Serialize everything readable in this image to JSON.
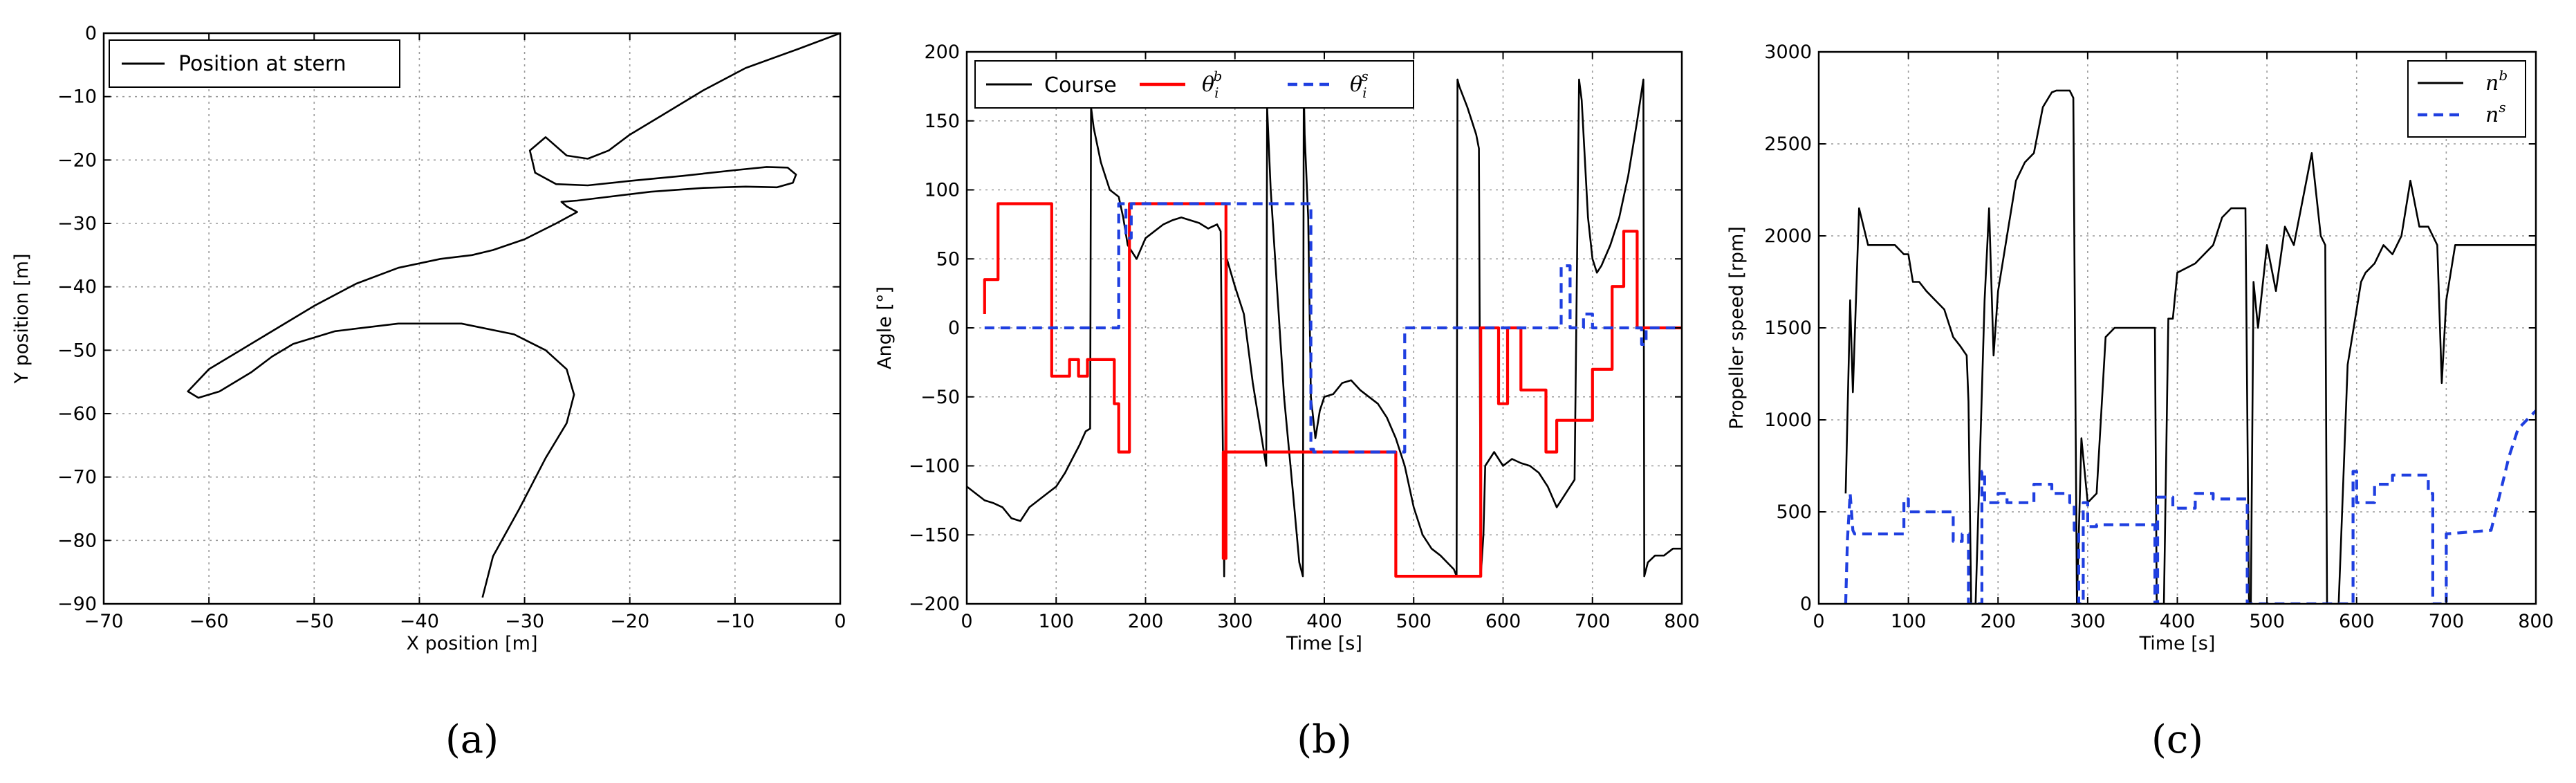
{
  "colors": {
    "black": "#000000",
    "red": "#ff0000",
    "blue": "#1f3fe0",
    "grid": "#9a9a9a"
  },
  "chart_data": [
    {
      "id": "a",
      "type": "line",
      "caption": "(a)",
      "title": "",
      "xlabel": "X position [m]",
      "ylabel": "Y position [m]",
      "xlim": [
        -70,
        0
      ],
      "ylim": [
        -90,
        0
      ],
      "xticks": [
        -70,
        -60,
        -50,
        -40,
        -30,
        -20,
        -10,
        0
      ],
      "xticklabels": [
        "−70",
        "−60",
        "−50",
        "−40",
        "−30",
        "−20",
        "−10",
        "0"
      ],
      "yticks": [
        -90,
        -80,
        -70,
        -60,
        -50,
        -40,
        -30,
        -20,
        -10,
        0
      ],
      "yticklabels": [
        "−90",
        "−80",
        "−70",
        "−60",
        "−50",
        "−40",
        "−30",
        "−20",
        "−10",
        "0"
      ],
      "grid": true,
      "legend": "top-left",
      "series": [
        {
          "name": "Position at stern",
          "color": "#000000",
          "style": "solid",
          "x": [
            0,
            -4,
            -9,
            -13,
            -17,
            -20,
            -22,
            -24,
            -26,
            -28,
            -29.5,
            -29,
            -27,
            -24,
            -20,
            -15,
            -10,
            -7,
            -5,
            -4.2,
            -4.5,
            -6,
            -9,
            -13,
            -18,
            -22,
            -25,
            -26.5,
            -26,
            -25,
            -27,
            -30,
            -33,
            -35,
            -38,
            -42,
            -46,
            -50,
            -55,
            -60,
            -62,
            -61,
            -59,
            -56,
            -54,
            -52,
            -48,
            -42,
            -36,
            -31,
            -28,
            -26,
            -25.3,
            -26,
            -28,
            -30.5,
            -33,
            -34
          ],
          "y": [
            0,
            -2.5,
            -5.5,
            -9,
            -13,
            -16,
            -18.5,
            -19.8,
            -19.3,
            -16.4,
            -18.5,
            -22,
            -23.8,
            -24,
            -23.3,
            -22.5,
            -21.6,
            -21.1,
            -21.2,
            -22.3,
            -23.6,
            -24.3,
            -24.2,
            -24.4,
            -25,
            -25.8,
            -26.4,
            -26.6,
            -27.3,
            -28.2,
            -30,
            -32.5,
            -34.2,
            -35,
            -35.6,
            -37,
            -39.5,
            -43,
            -48,
            -53,
            -56.5,
            -57.5,
            -56.5,
            -53.5,
            -51,
            -49,
            -47,
            -45.8,
            -45.8,
            -47.5,
            -50,
            -53,
            -57,
            -61.5,
            -67,
            -75,
            -82.5,
            -89
          ]
        }
      ]
    },
    {
      "id": "b",
      "type": "line",
      "caption": "(b)",
      "title": "",
      "xlabel": "Time [s]",
      "ylabel": "Angle [°]",
      "xlim": [
        0,
        800
      ],
      "ylim": [
        -200,
        200
      ],
      "xticks": [
        0,
        100,
        200,
        300,
        400,
        500,
        600,
        700,
        800
      ],
      "xticklabels": [
        "0",
        "100",
        "200",
        "300",
        "400",
        "500",
        "600",
        "700",
        "800"
      ],
      "yticks": [
        -200,
        -150,
        -100,
        -50,
        0,
        50,
        100,
        150,
        200
      ],
      "yticklabels": [
        "−200",
        "−150",
        "−100",
        "−50",
        "0",
        "50",
        "100",
        "150",
        "200"
      ],
      "grid": true,
      "legend": "top",
      "series": [
        {
          "name": "Course",
          "color": "#000000",
          "style": "solid",
          "x": [
            0,
            10,
            20,
            30,
            40,
            50,
            60,
            70,
            80,
            90,
            100,
            110,
            118,
            126,
            133,
            138,
            139,
            142,
            150,
            160,
            170,
            175,
            180,
            185,
            190,
            200,
            210,
            220,
            230,
            240,
            250,
            260,
            270,
            280,
            284,
            288,
            291,
            300,
            310,
            320,
            330,
            335,
            336,
            340,
            345,
            355,
            365,
            372,
            376,
            377,
            378,
            382,
            385,
            390,
            395,
            400,
            410,
            420,
            430,
            440,
            450,
            460,
            470,
            480,
            490,
            500,
            510,
            520,
            530,
            545,
            548,
            549,
            551,
            560,
            565,
            570,
            573,
            575,
            578,
            580,
            590,
            600,
            610,
            620,
            630,
            640,
            650,
            660,
            670,
            680,
            685,
            688,
            695,
            700,
            705,
            710,
            720,
            730,
            740,
            750,
            757,
            758,
            762,
            770,
            780,
            790,
            800
          ],
          "y": [
            -115,
            -120,
            -125,
            -127,
            -130,
            -138,
            -140,
            -130,
            -125,
            -120,
            -115,
            -105,
            -95,
            -85,
            -75,
            -73,
            160,
            145,
            120,
            100,
            95,
            80,
            60,
            55,
            50,
            65,
            70,
            75,
            78,
            80,
            78,
            76,
            72,
            75,
            70,
            -180,
            50,
            30,
            10,
            -40,
            -80,
            -100,
            160,
            100,
            50,
            -50,
            -120,
            -170,
            -180,
            175,
            140,
            80,
            -50,
            -80,
            -60,
            -50,
            -48,
            -40,
            -38,
            -45,
            -50,
            -55,
            -65,
            -80,
            -100,
            -130,
            -150,
            -160,
            -165,
            -175,
            -180,
            180,
            175,
            160,
            150,
            140,
            130,
            -180,
            -150,
            -100,
            -90,
            -100,
            -95,
            -98,
            -100,
            -105,
            -115,
            -130,
            -120,
            -110,
            180,
            165,
            80,
            50,
            40,
            45,
            60,
            80,
            110,
            150,
            180,
            -180,
            -170,
            -165,
            -165,
            -160,
            -160
          ]
        },
        {
          "name": "θ_i^b",
          "legend_label": "θ",
          "legend_sub": "i",
          "legend_sup": "b",
          "color": "#ff0000",
          "style": "solid",
          "x": [
            20,
            20,
            25,
            25,
            35,
            35,
            85,
            85,
            95,
            95,
            110,
            110,
            115,
            115,
            125,
            125,
            135,
            135,
            165,
            165,
            170,
            170,
            182,
            182,
            290,
            290,
            287,
            287,
            395,
            395,
            480,
            480,
            560,
            560,
            575,
            575,
            595,
            595,
            605,
            605,
            620,
            620,
            640,
            640,
            648,
            648,
            660,
            660,
            690,
            690,
            700,
            700,
            715,
            715,
            722,
            722,
            735,
            735,
            750,
            750,
            762,
            762,
            800
          ],
          "y": [
            10,
            35,
            35,
            35,
            35,
            90,
            90,
            90,
            90,
            -35,
            -35,
            -35,
            -35,
            -23,
            -23,
            -35,
            -35,
            -23,
            -23,
            -55,
            -55,
            -90,
            -90,
            90,
            90,
            -167,
            -167,
            -90,
            -90,
            -90,
            -90,
            -180,
            -180,
            -180,
            -180,
            0,
            0,
            -55,
            -55,
            0,
            0,
            -45,
            -45,
            -45,
            -45,
            -90,
            -90,
            -67,
            -67,
            -67,
            -67,
            -30,
            -30,
            -30,
            -30,
            30,
            30,
            70,
            70,
            0,
            0,
            0,
            0
          ]
        },
        {
          "name": "θ_i^s",
          "legend_label": "θ",
          "legend_sub": "i",
          "legend_sup": "s",
          "color": "#1f3fe0",
          "style": "dashed",
          "x": [
            20,
            170,
            170,
            178,
            178,
            184,
            184,
            385,
            385,
            388,
            388,
            490,
            490,
            665,
            665,
            675,
            675,
            690,
            690,
            700,
            700,
            755,
            755,
            760,
            760,
            800
          ],
          "y": [
            0,
            0,
            90,
            90,
            65,
            65,
            90,
            90,
            -88,
            -88,
            -90,
            -90,
            0,
            0,
            45,
            45,
            0,
            0,
            10,
            10,
            0,
            0,
            -12,
            -12,
            0,
            0
          ]
        }
      ]
    },
    {
      "id": "c",
      "type": "line",
      "caption": "(c)",
      "title": "",
      "xlabel": "Time [s]",
      "ylabel": "Propeller speed [rpm]",
      "xlim": [
        0,
        800
      ],
      "ylim": [
        0,
        3000
      ],
      "xticks": [
        0,
        100,
        200,
        300,
        400,
        500,
        600,
        700,
        800
      ],
      "xticklabels": [
        "0",
        "100",
        "200",
        "300",
        "400",
        "500",
        "600",
        "700",
        "800"
      ],
      "yticks": [
        0,
        500,
        1000,
        1500,
        2000,
        2500,
        3000
      ],
      "yticklabels": [
        "0",
        "500",
        "1000",
        "1500",
        "2000",
        "2500",
        "3000"
      ],
      "grid": true,
      "legend": "top-right",
      "series": [
        {
          "name": "n^b",
          "legend_label": "n",
          "legend_sup": "b",
          "color": "#000000",
          "style": "solid",
          "x": [
            30,
            35,
            38,
            45,
            55,
            65,
            75,
            85,
            95,
            100,
            105,
            112,
            120,
            130,
            140,
            150,
            158,
            165,
            167,
            170,
            175,
            185,
            190,
            195,
            200,
            210,
            220,
            230,
            240,
            250,
            260,
            265,
            270,
            280,
            284,
            288,
            293,
            300,
            310,
            320,
            330,
            345,
            360,
            375,
            377,
            385,
            390,
            395,
            400,
            420,
            440,
            450,
            460,
            470,
            476,
            480,
            482,
            485,
            490,
            500,
            510,
            520,
            530,
            540,
            550,
            560,
            565,
            567,
            570,
            580,
            590,
            600,
            605,
            610,
            620,
            630,
            640,
            650,
            660,
            670,
            680,
            690,
            695,
            700,
            710,
            720,
            730,
            760,
            800
          ],
          "y": [
            600,
            1650,
            1150,
            2150,
            1950,
            1950,
            1950,
            1950,
            1900,
            1900,
            1750,
            1750,
            1700,
            1650,
            1600,
            1450,
            1400,
            1350,
            1100,
            0,
            0,
            1650,
            2150,
            1350,
            1700,
            2000,
            2300,
            2400,
            2450,
            2700,
            2780,
            2790,
            2790,
            2790,
            2750,
            0,
            900,
            550,
            600,
            1450,
            1500,
            1500,
            1500,
            1500,
            0,
            0,
            1550,
            1550,
            1800,
            1850,
            1950,
            2100,
            2150,
            2150,
            2150,
            0,
            0,
            1750,
            1500,
            1950,
            1700,
            2050,
            1950,
            2200,
            2450,
            2000,
            1950,
            0,
            0,
            0,
            1300,
            1600,
            1750,
            1800,
            1850,
            1950,
            1900,
            2000,
            2300,
            2050,
            2050,
            1950,
            1200,
            1650,
            1950,
            1950,
            1950,
            1950,
            1950
          ]
        },
        {
          "name": "n^s",
          "legend_label": "n",
          "legend_sup": "s",
          "color": "#1f3fe0",
          "style": "dashed",
          "x": [
            30,
            32,
            35,
            38,
            40,
            95,
            95,
            100,
            100,
            150,
            150,
            160,
            160,
            167,
            167,
            182,
            182,
            185,
            185,
            200,
            200,
            210,
            210,
            240,
            240,
            260,
            260,
            280,
            280,
            285,
            285,
            290,
            290,
            295,
            295,
            300,
            300,
            310,
            310,
            375,
            375,
            378,
            378,
            395,
            395,
            420,
            420,
            440,
            440,
            478,
            478,
            481,
            481,
            596,
            596,
            600,
            600,
            620,
            620,
            640,
            640,
            680,
            680,
            685,
            685,
            700,
            700,
            750,
            760,
            770,
            780,
            790,
            800
          ],
          "y": [
            0,
            350,
            600,
            400,
            380,
            380,
            570,
            570,
            500,
            500,
            340,
            340,
            380,
            380,
            0,
            0,
            720,
            720,
            550,
            550,
            600,
            600,
            550,
            550,
            650,
            650,
            600,
            600,
            550,
            550,
            400,
            400,
            0,
            0,
            550,
            550,
            420,
            420,
            430,
            430,
            0,
            0,
            580,
            580,
            520,
            520,
            600,
            600,
            570,
            570,
            0,
            0,
            0,
            0,
            720,
            720,
            550,
            550,
            650,
            650,
            700,
            700,
            600,
            600,
            0,
            0,
            380,
            400,
            600,
            800,
            950,
            1000,
            1050
          ]
        }
      ]
    }
  ]
}
